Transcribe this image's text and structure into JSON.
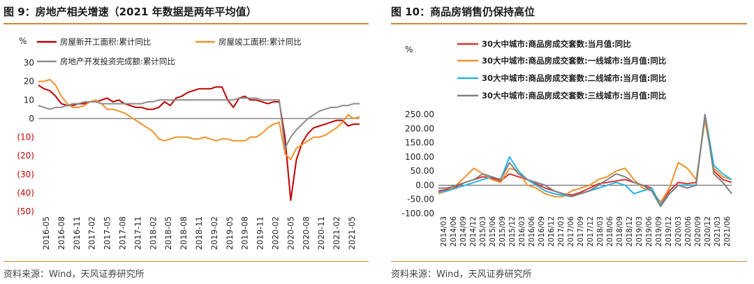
{
  "left": {
    "title": "图 9：房地产相关增速（2021 年数据是两年平均值）",
    "source": "资料来源：Wind，天风证券研究所",
    "chart_data": {
      "type": "line",
      "unit_label": "%",
      "ylim": [
        -50,
        30
      ],
      "y_ticks": [
        30,
        20,
        10,
        0,
        -10,
        -20,
        -30,
        -40,
        -50
      ],
      "y_tick_labels": [
        "30",
        "20",
        "10",
        "0",
        "(10)",
        "(20)",
        "(30)",
        "(40)",
        "(50)"
      ],
      "x_labels": [
        "2016-05",
        "2016-08",
        "2016-11",
        "2017-02",
        "2017-05",
        "2017-08",
        "2017-11",
        "2018-02",
        "2018-05",
        "2018-08",
        "2018-11",
        "2019-02",
        "2019-05",
        "2019-08",
        "2019-11",
        "2020-02",
        "2020-05",
        "2020-08",
        "2020-11",
        "2021-02",
        "2021-05"
      ],
      "series": [
        {
          "name": "房屋新开工面积:累计同比",
          "color": "#c00000",
          "values": [
            18,
            16,
            15,
            12,
            8,
            7,
            7,
            8,
            8,
            9,
            9,
            10,
            11,
            9,
            10,
            8,
            7,
            6,
            6,
            5,
            5,
            6,
            9,
            7,
            11,
            12,
            14,
            15,
            16,
            16,
            16,
            17,
            17,
            10,
            6,
            11,
            12,
            10,
            10,
            9,
            8,
            9,
            9,
            -10,
            -44,
            -22,
            -13,
            -8,
            -5,
            -4,
            -3,
            -2,
            -1,
            -1,
            -4,
            -3,
            -3
          ]
        },
        {
          "name": "房屋竣工面积:累计同比",
          "color": "#f0922b",
          "values": [
            20,
            20,
            21,
            18,
            12,
            8,
            6,
            6,
            7,
            9,
            10,
            8,
            5,
            5,
            4,
            3,
            1,
            -1,
            -3,
            -5,
            -7,
            -11,
            -12,
            -11,
            -10,
            -10,
            -10,
            -11,
            -11,
            -10,
            -11,
            -12,
            -11,
            -11,
            -12,
            -12,
            -12,
            -10,
            -10,
            -8,
            -5,
            -3,
            -2,
            -19,
            -22,
            -16,
            -14,
            -12,
            -10,
            -10,
            -9,
            -7,
            -5,
            -2,
            2,
            0,
            1
          ]
        },
        {
          "name": "房地产开发投资完成额:累计同比",
          "color": "#8c8c8c",
          "values": [
            7,
            6,
            5,
            6,
            6,
            7,
            8,
            8,
            9,
            9,
            9,
            8,
            8,
            8,
            8,
            8,
            8,
            8,
            8,
            9,
            9,
            10,
            10,
            10,
            10,
            10,
            10,
            10,
            10,
            10,
            10,
            10,
            10,
            10,
            10,
            11,
            11,
            11,
            11,
            10,
            10,
            10,
            10,
            -16,
            -10,
            -6,
            -3,
            0,
            2,
            4,
            5,
            6,
            6,
            7,
            7,
            8,
            8
          ]
        }
      ]
    }
  },
  "right": {
    "title": "图 10：商品房销售仍保持高位",
    "source": "资料来源：Wind，天风证券研究所",
    "chart_data": {
      "type": "line",
      "unit_label": "%",
      "ylim": [
        -100,
        250
      ],
      "y_ticks": [
        250,
        200,
        150,
        100,
        50,
        0,
        -50,
        -100
      ],
      "y_tick_labels": [
        "250.00",
        "200.00",
        "150.00",
        "100.00",
        "50.00",
        "0.00",
        "-50.00",
        "-100.00"
      ],
      "x_labels": [
        "2014/03",
        "2014/06",
        "2014/09",
        "2014/12",
        "2015/03",
        "2015/06",
        "2015/09",
        "2015/12",
        "2016/03",
        "2016/06",
        "2016/09",
        "2016/12",
        "2017/03",
        "2017/06",
        "2017/09",
        "2017/12",
        "2018/03",
        "2018/06",
        "2018/09",
        "2018/12",
        "2019/03",
        "2019/06",
        "2019/09",
        "2019/12",
        "2020/03",
        "2020/06",
        "2020/09",
        "2020/12",
        "2021/03",
        "2021/06"
      ],
      "series": [
        {
          "name": "30大中城市:商品房成交套数:当月值:同比",
          "color": "#e03030",
          "values": [
            -20,
            -15,
            -5,
            10,
            20,
            30,
            25,
            15,
            40,
            30,
            20,
            5,
            -10,
            -20,
            -30,
            -35,
            -25,
            -10,
            5,
            10,
            15,
            20,
            10,
            0,
            -10,
            -70,
            -20,
            10,
            5,
            10,
            240,
            50,
            20,
            10
          ]
        },
        {
          "name": "30大中城市:商品房成交套数:一线城市:当月值:同比",
          "color": "#f0922b",
          "values": [
            -30,
            -20,
            0,
            30,
            60,
            40,
            20,
            10,
            60,
            50,
            0,
            -10,
            -30,
            -40,
            -40,
            -20,
            -10,
            0,
            20,
            30,
            50,
            60,
            20,
            -10,
            -20,
            -60,
            -10,
            80,
            60,
            20,
            230,
            60,
            30,
            20
          ]
        },
        {
          "name": "30大中城市:商品房成交套数:二线城市:当月值:同比",
          "color": "#25b4e6",
          "values": [
            -25,
            -20,
            -10,
            0,
            10,
            20,
            30,
            20,
            100,
            50,
            20,
            0,
            -20,
            -30,
            -35,
            -40,
            -30,
            -20,
            -10,
            0,
            10,
            0,
            -30,
            -20,
            -10,
            -70,
            -30,
            0,
            0,
            0,
            250,
            70,
            40,
            20
          ]
        },
        {
          "name": "30大中城市:商品房成交套数:三线城市:当月值:同比",
          "color": "#808080",
          "values": [
            -10,
            -10,
            0,
            10,
            20,
            40,
            30,
            20,
            80,
            40,
            20,
            10,
            0,
            -20,
            -30,
            -40,
            -30,
            -20,
            0,
            20,
            40,
            30,
            10,
            0,
            -20,
            -75,
            -30,
            0,
            -10,
            0,
            250,
            40,
            10,
            -30
          ]
        }
      ]
    }
  }
}
